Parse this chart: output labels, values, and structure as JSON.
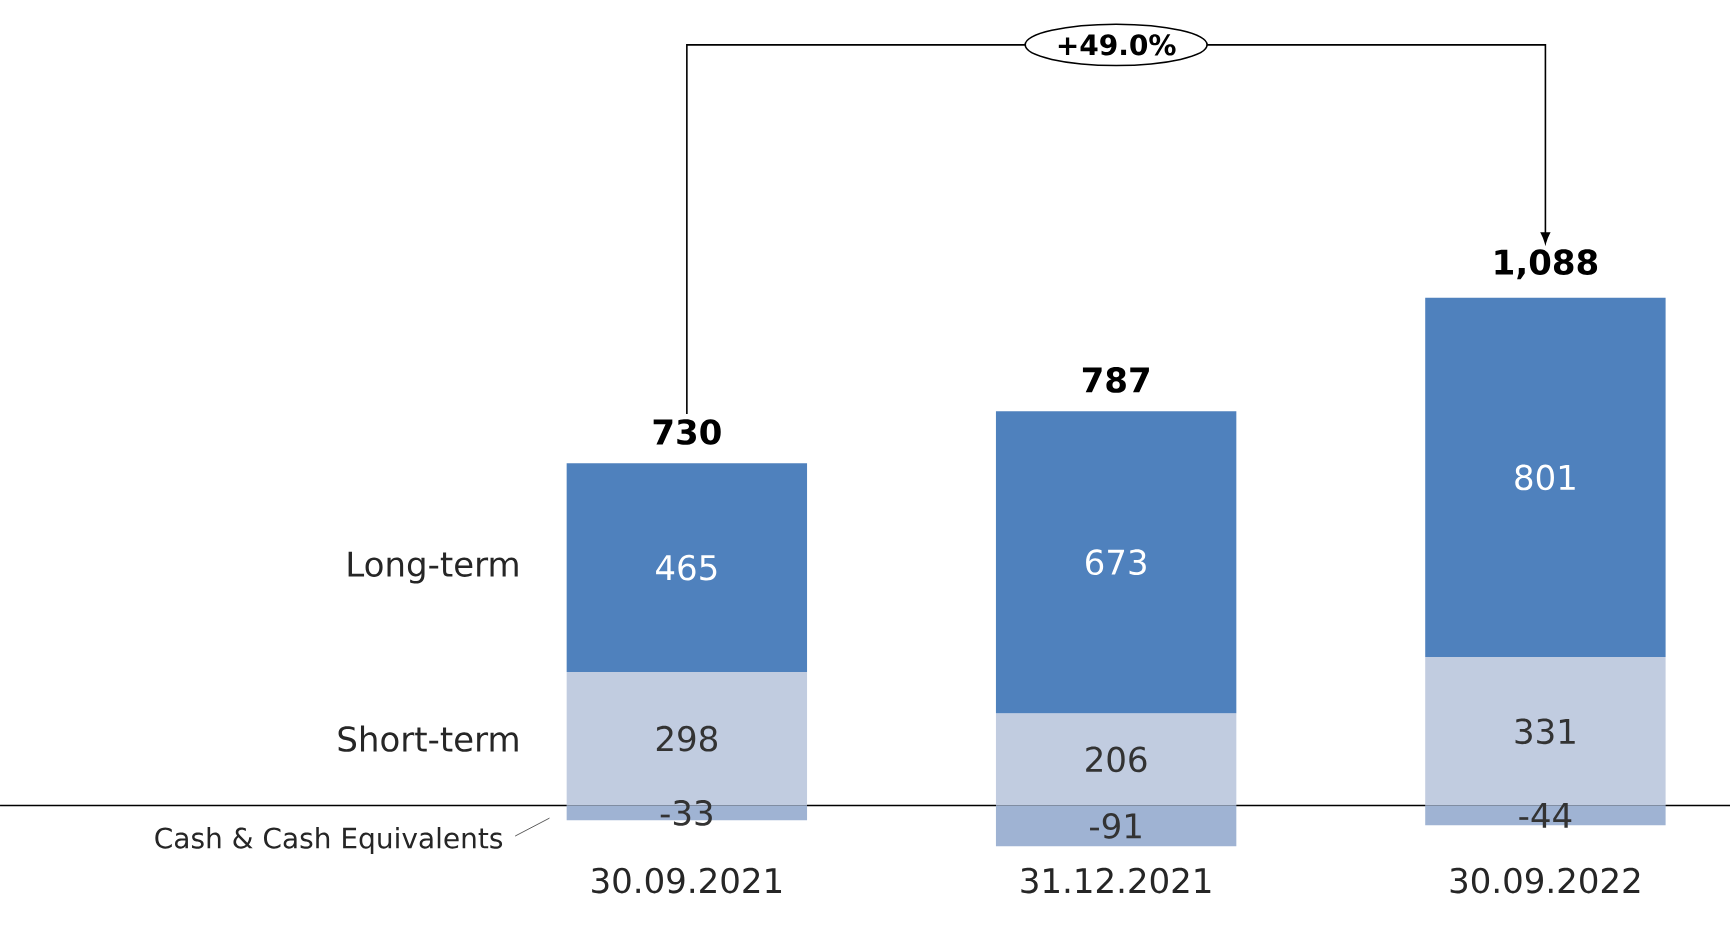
{
  "chart_data": {
    "type": "bar",
    "stacked": true,
    "data_labels": true,
    "tick_labels": "x",
    "categories": [
      "30.09.2021",
      "31.12.2021",
      "30.09.2022"
    ],
    "series": [
      {
        "name": "Short-term",
        "color": "#c1cce0",
        "values": [
          298,
          206,
          331
        ]
      },
      {
        "name": "Long-term",
        "color": "#4f81bd",
        "values": [
          465,
          673,
          801
        ]
      },
      {
        "name": "Cash & Cash Equivalents",
        "color": "#9fb3d3",
        "values": [
          -33,
          -91,
          -44
        ]
      }
    ],
    "totals": [
      "730",
      "787",
      "1,088"
    ],
    "annotations": [
      "+49.0%"
    ]
  }
}
